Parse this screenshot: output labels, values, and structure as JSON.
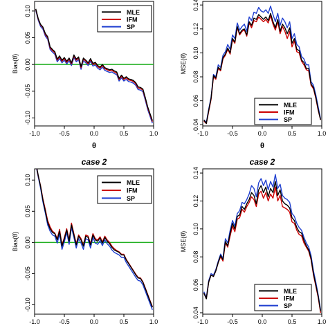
{
  "chart_data": [
    {
      "type": "line",
      "title": "",
      "xlabel": "θ",
      "ylabel": "Bias(θ̂)",
      "xlim": [
        -1.0,
        1.0
      ],
      "ylim": [
        -0.115,
        0.118
      ],
      "xticks": [
        -1.0,
        -0.5,
        0.0,
        0.5,
        1.0
      ],
      "xtick_labels": [
        "-1.0",
        "-0.5",
        "0.0",
        "0.5",
        "1.0"
      ],
      "yticks": [
        -0.1,
        -0.05,
        0.0,
        0.05,
        0.1
      ],
      "ytick_labels": [
        "-0.10",
        "-0.05",
        "0.00",
        "0.05",
        "0.10"
      ],
      "hline": {
        "y": 0,
        "color": "#22b022"
      },
      "legend": "top-right",
      "x": [
        -0.98,
        -0.94,
        -0.9,
        -0.86,
        -0.82,
        -0.78,
        -0.74,
        -0.7,
        -0.66,
        -0.62,
        -0.58,
        -0.54,
        -0.5,
        -0.46,
        -0.42,
        -0.38,
        -0.34,
        -0.3,
        -0.26,
        -0.22,
        -0.18,
        -0.14,
        -0.1,
        -0.06,
        -0.02,
        0.02,
        0.06,
        0.1,
        0.14,
        0.18,
        0.22,
        0.26,
        0.3,
        0.34,
        0.38,
        0.42,
        0.46,
        0.5,
        0.54,
        0.58,
        0.62,
        0.66,
        0.7,
        0.74,
        0.78,
        0.82,
        0.86,
        0.9,
        0.94,
        0.98
      ],
      "series": [
        {
          "name": "MLE",
          "color": "#000000",
          "values": [
            0.104,
            0.086,
            0.075,
            0.07,
            0.058,
            0.052,
            0.033,
            0.028,
            0.024,
            0.01,
            0.016,
            0.008,
            0.013,
            0.006,
            0.012,
            0.003,
            0.018,
            0.01,
            0.014,
            -0.004,
            0.012,
            0.008,
            0.003,
            0.011,
            0.002,
            0.004,
            -0.002,
            -0.005,
            0.0,
            -0.006,
            -0.008,
            -0.01,
            -0.009,
            -0.012,
            -0.014,
            -0.026,
            -0.02,
            -0.026,
            -0.023,
            -0.027,
            -0.028,
            -0.03,
            -0.034,
            -0.042,
            -0.043,
            -0.046,
            -0.062,
            -0.079,
            -0.092,
            -0.105
          ]
        },
        {
          "name": "IFM",
          "color": "#cc0000",
          "values": [
            0.103,
            0.085,
            0.074,
            0.069,
            0.056,
            0.05,
            0.031,
            0.026,
            0.022,
            0.008,
            0.014,
            0.006,
            0.011,
            0.004,
            0.01,
            0.001,
            0.016,
            0.008,
            0.012,
            -0.006,
            0.01,
            0.006,
            0.001,
            0.009,
            0.0,
            0.002,
            -0.004,
            -0.007,
            -0.002,
            -0.008,
            -0.01,
            -0.012,
            -0.011,
            -0.014,
            -0.016,
            -0.028,
            -0.022,
            -0.028,
            -0.025,
            -0.029,
            -0.03,
            -0.032,
            -0.036,
            -0.044,
            -0.045,
            -0.048,
            -0.064,
            -0.081,
            -0.094,
            -0.107
          ]
        },
        {
          "name": "SP",
          "color": "#1f3fd0",
          "values": [
            0.101,
            0.083,
            0.071,
            0.066,
            0.053,
            0.047,
            0.028,
            0.023,
            0.019,
            0.005,
            0.011,
            0.003,
            0.008,
            0.001,
            0.007,
            -0.002,
            0.013,
            0.005,
            0.009,
            -0.009,
            0.007,
            0.003,
            -0.002,
            0.006,
            -0.003,
            -0.001,
            -0.007,
            -0.01,
            -0.005,
            -0.011,
            -0.013,
            -0.015,
            -0.014,
            -0.017,
            -0.019,
            -0.031,
            -0.025,
            -0.031,
            -0.028,
            -0.032,
            -0.033,
            -0.035,
            -0.039,
            -0.047,
            -0.048,
            -0.051,
            -0.067,
            -0.084,
            -0.097,
            -0.11
          ]
        }
      ]
    },
    {
      "type": "line",
      "title": "",
      "xlabel": "θ",
      "ylabel": "MSE(θ̂)",
      "xlim": [
        -1.0,
        1.0
      ],
      "ylim": [
        0.039,
        0.143
      ],
      "xticks": [
        -1.0,
        -0.5,
        0.0,
        0.5,
        1.0
      ],
      "xtick_labels": [
        "-1.0",
        "-0.5",
        "0.0",
        "0.5",
        "1.0"
      ],
      "yticks": [
        0.04,
        0.06,
        0.08,
        0.1,
        0.12,
        0.14
      ],
      "ytick_labels": [
        "0.04",
        "0.06",
        "0.08",
        "0.10",
        "0.12",
        "0.14"
      ],
      "legend": "bottom-right",
      "x": [
        -0.98,
        -0.94,
        -0.9,
        -0.86,
        -0.82,
        -0.78,
        -0.74,
        -0.7,
        -0.66,
        -0.62,
        -0.58,
        -0.54,
        -0.5,
        -0.46,
        -0.42,
        -0.38,
        -0.34,
        -0.3,
        -0.26,
        -0.22,
        -0.18,
        -0.14,
        -0.1,
        -0.06,
        -0.02,
        0.02,
        0.06,
        0.1,
        0.14,
        0.18,
        0.22,
        0.26,
        0.3,
        0.34,
        0.38,
        0.42,
        0.46,
        0.5,
        0.54,
        0.58,
        0.62,
        0.66,
        0.7,
        0.74,
        0.78,
        0.82,
        0.86,
        0.9,
        0.94,
        0.98
      ],
      "series": [
        {
          "name": "MLE",
          "color": "#000000",
          "values": [
            0.044,
            0.041,
            0.052,
            0.062,
            0.081,
            0.079,
            0.088,
            0.086,
            0.096,
            0.099,
            0.104,
            0.1,
            0.112,
            0.109,
            0.122,
            0.116,
            0.119,
            0.12,
            0.115,
            0.126,
            0.123,
            0.129,
            0.128,
            0.132,
            0.13,
            0.128,
            0.13,
            0.127,
            0.133,
            0.126,
            0.121,
            0.128,
            0.118,
            0.124,
            0.121,
            0.116,
            0.121,
            0.108,
            0.112,
            0.103,
            0.102,
            0.094,
            0.092,
            0.087,
            0.087,
            0.074,
            0.071,
            0.063,
            0.053,
            0.044
          ]
        },
        {
          "name": "IFM",
          "color": "#cc0000",
          "values": [
            0.043,
            0.041,
            0.051,
            0.061,
            0.08,
            0.078,
            0.087,
            0.085,
            0.095,
            0.098,
            0.103,
            0.099,
            0.111,
            0.108,
            0.121,
            0.115,
            0.118,
            0.119,
            0.114,
            0.125,
            0.121,
            0.127,
            0.126,
            0.13,
            0.128,
            0.126,
            0.128,
            0.125,
            0.131,
            0.124,
            0.119,
            0.126,
            0.116,
            0.122,
            0.118,
            0.112,
            0.118,
            0.105,
            0.11,
            0.101,
            0.1,
            0.093,
            0.09,
            0.086,
            0.085,
            0.073,
            0.07,
            0.062,
            0.052,
            0.044
          ]
        },
        {
          "name": "SP",
          "color": "#1f3fd0",
          "values": [
            0.044,
            0.042,
            0.053,
            0.063,
            0.082,
            0.08,
            0.09,
            0.088,
            0.098,
            0.101,
            0.107,
            0.103,
            0.115,
            0.112,
            0.125,
            0.119,
            0.122,
            0.124,
            0.118,
            0.13,
            0.127,
            0.134,
            0.133,
            0.138,
            0.135,
            0.134,
            0.136,
            0.133,
            0.139,
            0.132,
            0.126,
            0.133,
            0.123,
            0.129,
            0.126,
            0.121,
            0.126,
            0.112,
            0.116,
            0.107,
            0.105,
            0.097,
            0.095,
            0.09,
            0.09,
            0.076,
            0.073,
            0.065,
            0.055,
            0.045
          ]
        }
      ]
    },
    {
      "type": "line",
      "title": "case 2",
      "xlabel": "",
      "ylabel": "Bias(θ̂)",
      "xlim": [
        -1.0,
        1.0
      ],
      "ylim": [
        -0.115,
        0.118
      ],
      "xticks": [
        -1.0,
        -0.5,
        0.0,
        0.5,
        1.0
      ],
      "xtick_labels": [
        "-1.0",
        "-0.5",
        "0.0",
        "0.5",
        "1.0"
      ],
      "yticks": [
        -0.1,
        -0.05,
        0.0,
        0.05,
        0.1
      ],
      "ytick_labels": [
        "-0.10",
        "-0.05",
        "0.00",
        "0.05",
        "0.10"
      ],
      "hline": {
        "y": 0,
        "color": "#22b022"
      },
      "legend": "top-right",
      "x": [
        -0.98,
        -0.94,
        -0.9,
        -0.86,
        -0.82,
        -0.78,
        -0.74,
        -0.7,
        -0.66,
        -0.62,
        -0.58,
        -0.54,
        -0.5,
        -0.46,
        -0.42,
        -0.38,
        -0.34,
        -0.3,
        -0.26,
        -0.22,
        -0.18,
        -0.14,
        -0.1,
        -0.06,
        -0.02,
        0.02,
        0.06,
        0.1,
        0.14,
        0.18,
        0.22,
        0.26,
        0.3,
        0.34,
        0.38,
        0.42,
        0.46,
        0.5,
        0.54,
        0.58,
        0.62,
        0.66,
        0.7,
        0.74,
        0.78,
        0.82,
        0.86,
        0.9,
        0.94,
        0.98
      ],
      "series": [
        {
          "name": "MLE",
          "color": "#000000",
          "values": [
            0.128,
            0.108,
            0.09,
            0.068,
            0.05,
            0.032,
            0.022,
            0.016,
            0.014,
            0.004,
            0.018,
            -0.006,
            0.006,
            0.02,
            0.002,
            0.028,
            0.012,
            -0.004,
            0.01,
            0.004,
            -0.006,
            0.01,
            0.008,
            -0.004,
            0.012,
            0.004,
            0.002,
            0.007,
            -0.001,
            0.008,
            0.002,
            -0.002,
            -0.008,
            -0.012,
            -0.014,
            -0.016,
            -0.02,
            -0.02,
            -0.028,
            -0.034,
            -0.04,
            -0.046,
            -0.052,
            -0.057,
            -0.058,
            -0.064,
            -0.074,
            -0.084,
            -0.094,
            -0.104
          ]
        },
        {
          "name": "IFM",
          "color": "#cc0000",
          "values": [
            0.127,
            0.107,
            0.091,
            0.07,
            0.053,
            0.035,
            0.025,
            0.018,
            0.015,
            0.006,
            0.021,
            -0.004,
            0.008,
            0.022,
            0.004,
            0.031,
            0.014,
            -0.002,
            0.012,
            0.006,
            -0.004,
            0.012,
            0.01,
            -0.002,
            0.014,
            0.006,
            0.004,
            0.009,
            0.001,
            0.01,
            0.004,
            0.0,
            -0.006,
            -0.01,
            -0.013,
            -0.015,
            -0.019,
            -0.019,
            -0.027,
            -0.033,
            -0.039,
            -0.045,
            -0.051,
            -0.056,
            -0.057,
            -0.063,
            -0.073,
            -0.083,
            -0.093,
            -0.103
          ]
        },
        {
          "name": "SP",
          "color": "#1f3fd0",
          "values": [
            0.125,
            0.105,
            0.087,
            0.065,
            0.047,
            0.028,
            0.018,
            0.012,
            0.01,
            -0.001,
            0.013,
            -0.011,
            0.001,
            0.016,
            -0.003,
            0.024,
            0.008,
            -0.009,
            0.006,
            -0.001,
            -0.011,
            0.006,
            0.004,
            -0.009,
            0.008,
            -0.001,
            -0.003,
            0.003,
            -0.005,
            0.004,
            -0.002,
            -0.006,
            -0.012,
            -0.016,
            -0.018,
            -0.02,
            -0.024,
            -0.024,
            -0.032,
            -0.038,
            -0.044,
            -0.05,
            -0.056,
            -0.061,
            -0.062,
            -0.068,
            -0.078,
            -0.088,
            -0.098,
            -0.108
          ]
        }
      ]
    },
    {
      "type": "line",
      "title": "case 2",
      "xlabel": "",
      "ylabel": "MSE(θ̂)",
      "xlim": [
        -1.0,
        1.0
      ],
      "ylim": [
        0.039,
        0.143
      ],
      "xticks": [
        -1.0,
        -0.5,
        0.0,
        0.5,
        1.0
      ],
      "xtick_labels": [
        "-1.0",
        "-0.5",
        "0.0",
        "0.5",
        "1.0"
      ],
      "yticks": [
        0.04,
        0.06,
        0.08,
        0.1,
        0.12,
        0.14
      ],
      "ytick_labels": [
        "0.04",
        "0.06",
        "0.08",
        "0.10",
        "0.12",
        "0.14"
      ],
      "legend": "bottom-right",
      "x": [
        -0.98,
        -0.94,
        -0.9,
        -0.86,
        -0.82,
        -0.78,
        -0.74,
        -0.7,
        -0.66,
        -0.62,
        -0.58,
        -0.54,
        -0.5,
        -0.46,
        -0.42,
        -0.38,
        -0.34,
        -0.3,
        -0.26,
        -0.22,
        -0.18,
        -0.14,
        -0.1,
        -0.06,
        -0.02,
        0.02,
        0.06,
        0.1,
        0.14,
        0.18,
        0.22,
        0.26,
        0.3,
        0.34,
        0.38,
        0.42,
        0.46,
        0.5,
        0.54,
        0.58,
        0.62,
        0.66,
        0.7,
        0.74,
        0.78,
        0.82,
        0.86,
        0.9,
        0.94,
        0.98
      ],
      "series": [
        {
          "name": "MLE",
          "color": "#000000",
          "values": [
            0.054,
            0.05,
            0.062,
            0.067,
            0.066,
            0.07,
            0.076,
            0.081,
            0.078,
            0.091,
            0.088,
            0.097,
            0.104,
            0.1,
            0.109,
            0.11,
            0.116,
            0.114,
            0.118,
            0.121,
            0.126,
            0.124,
            0.118,
            0.128,
            0.131,
            0.126,
            0.13,
            0.123,
            0.129,
            0.126,
            0.134,
            0.124,
            0.128,
            0.12,
            0.118,
            0.117,
            0.115,
            0.108,
            0.106,
            0.101,
            0.098,
            0.097,
            0.092,
            0.088,
            0.085,
            0.079,
            0.068,
            0.06,
            0.052,
            0.041
          ]
        },
        {
          "name": "IFM",
          "color": "#cc0000",
          "values": [
            0.054,
            0.05,
            0.062,
            0.067,
            0.066,
            0.07,
            0.076,
            0.08,
            0.077,
            0.09,
            0.087,
            0.095,
            0.102,
            0.098,
            0.107,
            0.108,
            0.114,
            0.112,
            0.116,
            0.119,
            0.123,
            0.121,
            0.116,
            0.125,
            0.127,
            0.122,
            0.126,
            0.12,
            0.125,
            0.122,
            0.13,
            0.12,
            0.124,
            0.116,
            0.115,
            0.114,
            0.112,
            0.105,
            0.104,
            0.099,
            0.096,
            0.095,
            0.09,
            0.087,
            0.084,
            0.078,
            0.067,
            0.059,
            0.051,
            0.04
          ]
        },
        {
          "name": "SP",
          "color": "#1f3fd0",
          "values": [
            0.055,
            0.051,
            0.063,
            0.068,
            0.067,
            0.071,
            0.077,
            0.082,
            0.079,
            0.093,
            0.09,
            0.099,
            0.106,
            0.102,
            0.111,
            0.113,
            0.119,
            0.118,
            0.121,
            0.125,
            0.131,
            0.129,
            0.123,
            0.133,
            0.136,
            0.131,
            0.135,
            0.128,
            0.134,
            0.13,
            0.139,
            0.129,
            0.132,
            0.124,
            0.122,
            0.121,
            0.119,
            0.111,
            0.109,
            0.104,
            0.101,
            0.099,
            0.094,
            0.09,
            0.087,
            0.081,
            0.07,
            0.062,
            0.053,
            0.042
          ]
        }
      ]
    }
  ]
}
